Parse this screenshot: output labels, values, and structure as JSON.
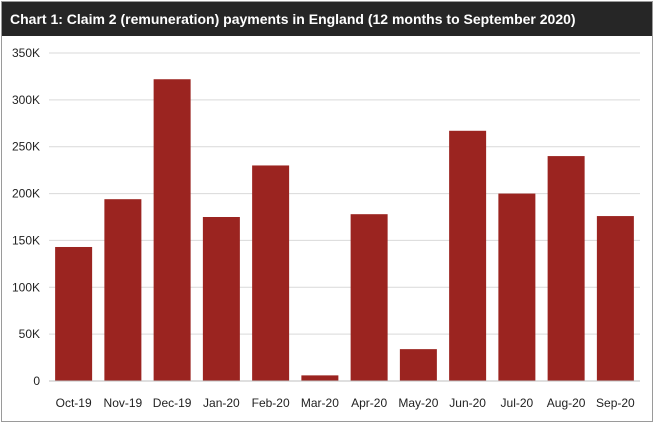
{
  "chart_data": {
    "type": "bar",
    "title": "Chart 1: Claim 2 (remuneration) payments in England (12 months to September 2020)",
    "categories": [
      "Oct-19",
      "Nov-19",
      "Dec-19",
      "Jan-20",
      "Feb-20",
      "Mar-20",
      "Apr-20",
      "May-20",
      "Jun-20",
      "Jul-20",
      "Aug-20",
      "Sep-20"
    ],
    "values": [
      143000,
      194000,
      322000,
      175000,
      230000,
      6000,
      178000,
      34000,
      267000,
      200000,
      240000,
      176000
    ],
    "ylim": [
      0,
      350000
    ],
    "yticks": [
      0,
      50000,
      100000,
      150000,
      200000,
      250000,
      300000,
      350000
    ],
    "ytick_labels": [
      "0",
      "50K",
      "100K",
      "150K",
      "200K",
      "250K",
      "300K",
      "350K"
    ],
    "xlabel": "",
    "ylabel": "",
    "grid": true,
    "bar_color": "#9b2420",
    "grid_color": "#d9d9d9"
  }
}
